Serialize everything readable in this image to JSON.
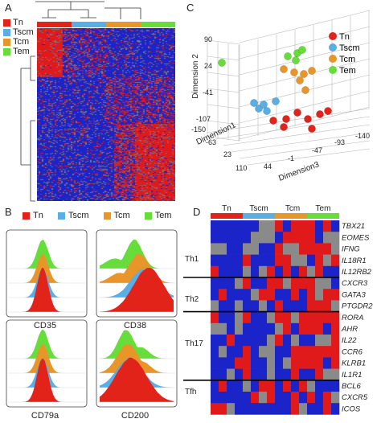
{
  "panels": {
    "A": {
      "letter": "A",
      "legend": [
        "Tn",
        "Tscm",
        "Tcm",
        "Tem"
      ]
    },
    "B": {
      "letter": "B",
      "legend": [
        "Tn",
        "Tscm",
        "Tcm",
        "Tem"
      ],
      "markers": [
        "CD35",
        "CD38",
        "CD79a",
        "CD200"
      ]
    },
    "C": {
      "letter": "C",
      "legend": [
        "Tn",
        "Tscm",
        "Tcm",
        "Tem"
      ],
      "axis_dim2": "Dimension 2",
      "axis_dim1": "Dimension1",
      "axis_dim3": "Dimension3"
    },
    "D": {
      "letter": "D",
      "columns": [
        "Tn",
        "Tscm",
        "Tcm",
        "Tem"
      ]
    }
  },
  "colors": {
    "Tn": "#e2231a",
    "Tscm": "#5aaee6",
    "Tcm": "#e8952a",
    "Tem": "#66dd3a",
    "heat_low": "#1a24c8",
    "heat_high": "#e01a1a",
    "heat_mid": "#8a8a8a"
  },
  "chart_data": [
    {
      "type": "heatmap",
      "panel": "A",
      "groups": [
        "Tn",
        "Tscm",
        "Tcm",
        "Tem"
      ]
    },
    {
      "type": "scatter",
      "panel": "C",
      "xlabel": "Dimension1",
      "ylabel": "Dimension 2",
      "zlabel": "Dimension3",
      "dim2_ticks": [
        "90",
        "24",
        "-41",
        "-107"
      ],
      "dim1_ticks": [
        "-150",
        "-63",
        "23",
        "110"
      ],
      "dim3_ticks": [
        "44",
        "-1",
        "-47",
        "-93",
        "-140"
      ],
      "legend": [
        "Tn",
        "Tscm",
        "Tcm",
        "Tem"
      ]
    },
    {
      "type": "area",
      "panel": "B",
      "series": [
        "Tn",
        "Tscm",
        "Tcm",
        "Tem"
      ],
      "markers": [
        "CD35",
        "CD38",
        "CD79a",
        "CD200"
      ]
    },
    {
      "type": "heatmap",
      "panel": "D",
      "columns": [
        "Tn",
        "Tscm",
        "Tcm",
        "Tem"
      ],
      "groups": [
        {
          "name": "Th1",
          "genes": [
            "TBX21",
            "EOMES",
            "IFNG",
            "IL18R1",
            "IL12RB2"
          ]
        },
        {
          "name": "Th2",
          "genes": [
            "CXCR3",
            "GATA3",
            "PTGDR2"
          ]
        },
        {
          "name": "Th17",
          "genes": [
            "RORA",
            "AHR",
            "IL22",
            "CCR6",
            "KLRB1",
            "IL1R1"
          ]
        },
        {
          "name": "Tfh",
          "genes": [
            "BCL6",
            "CXCR5",
            "ICOS"
          ]
        }
      ]
    }
  ]
}
